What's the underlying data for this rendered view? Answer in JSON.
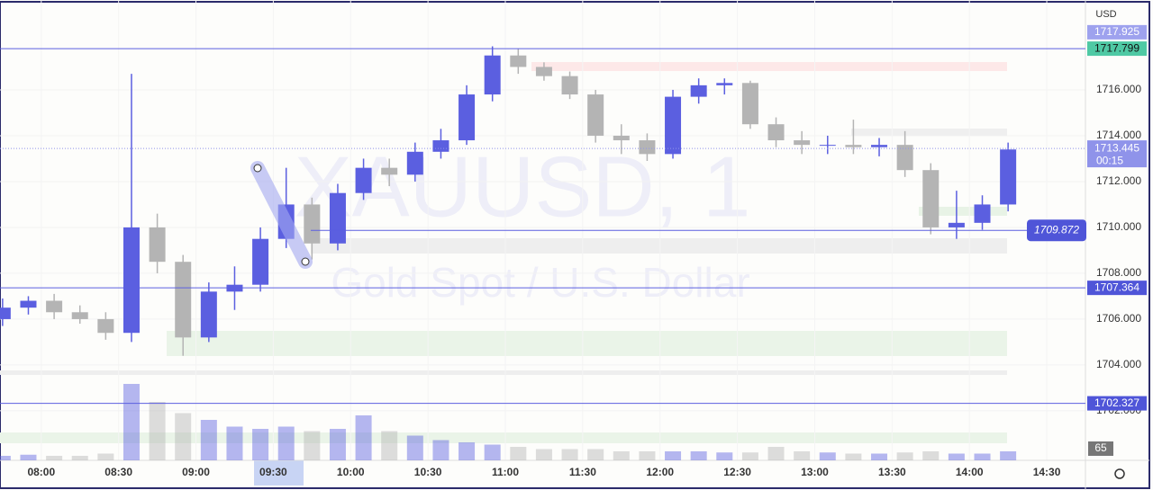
{
  "chart_data": {
    "type": "candlestick",
    "symbol_watermark": "XAUUSD, 1",
    "description_watermark": "Gold Spot / U.S. Dollar",
    "currency": "USD",
    "x": [
      "07:45",
      "07:55",
      "08:05",
      "08:15",
      "08:25",
      "08:35",
      "08:45",
      "08:55",
      "09:05",
      "09:15",
      "09:25",
      "09:35",
      "09:45",
      "09:55",
      "10:05",
      "10:15",
      "10:25",
      "10:35",
      "10:45",
      "10:55",
      "11:05",
      "11:15",
      "11:25",
      "11:35",
      "11:45",
      "11:55",
      "12:05",
      "12:15",
      "12:25",
      "12:35",
      "12:45",
      "12:55",
      "13:05",
      "13:15",
      "13:25",
      "13:35",
      "13:45",
      "13:55",
      "14:05",
      "14:15"
    ],
    "open": [
      1706.0,
      1706.5,
      1706.8,
      1706.3,
      1706.0,
      1705.4,
      1710.0,
      1708.5,
      1705.2,
      1707.2,
      1707.5,
      1709.5,
      1711.0,
      1709.3,
      1711.5,
      1712.6,
      1712.3,
      1713.3,
      1713.8,
      1715.8,
      1717.5,
      1717.0,
      1716.6,
      1715.8,
      1714.0,
      1713.8,
      1713.2,
      1715.7,
      1716.2,
      1716.3,
      1714.5,
      1713.8,
      1713.6,
      1713.6,
      1713.5,
      1713.6,
      1712.5,
      1710.0,
      1710.2,
      1711.0
    ],
    "high": [
      1706.9,
      1707.0,
      1707.1,
      1706.6,
      1706.3,
      1716.7,
      1710.6,
      1708.8,
      1707.6,
      1708.3,
      1710.0,
      1712.6,
      1711.3,
      1711.9,
      1713.0,
      1713.0,
      1713.7,
      1714.3,
      1716.2,
      1717.9,
      1717.8,
      1717.2,
      1716.8,
      1716.0,
      1714.5,
      1714.1,
      1716.0,
      1716.5,
      1716.5,
      1716.4,
      1714.8,
      1714.2,
      1714.0,
      1714.7,
      1713.9,
      1714.2,
      1712.8,
      1711.6,
      1711.4,
      1713.7
    ],
    "low": [
      1705.7,
      1706.2,
      1706.0,
      1705.8,
      1705.1,
      1705.0,
      1708.0,
      1704.4,
      1705.0,
      1706.4,
      1707.2,
      1709.1,
      1708.6,
      1709.0,
      1711.2,
      1711.8,
      1712.0,
      1713.0,
      1713.6,
      1715.5,
      1716.7,
      1716.4,
      1715.6,
      1713.7,
      1713.2,
      1712.9,
      1713.0,
      1715.4,
      1715.8,
      1714.3,
      1713.5,
      1713.2,
      1713.2,
      1713.2,
      1713.1,
      1712.2,
      1709.7,
      1709.5,
      1709.9,
      1710.7
    ],
    "close": [
      1706.5,
      1706.8,
      1706.3,
      1706.0,
      1705.4,
      1710.0,
      1708.5,
      1705.2,
      1707.2,
      1707.5,
      1709.5,
      1711.0,
      1709.3,
      1711.5,
      1712.6,
      1712.3,
      1713.3,
      1713.8,
      1715.8,
      1717.5,
      1717.0,
      1716.6,
      1715.8,
      1714.0,
      1713.8,
      1713.2,
      1715.7,
      1716.2,
      1716.3,
      1714.5,
      1713.8,
      1713.6,
      1713.6,
      1713.5,
      1713.6,
      1712.5,
      1710.0,
      1710.2,
      1711.0,
      1713.4
    ],
    "volume": [
      20,
      25,
      20,
      20,
      30,
      340,
      260,
      210,
      180,
      150,
      140,
      150,
      130,
      140,
      200,
      130,
      110,
      90,
      80,
      70,
      60,
      50,
      50,
      50,
      40,
      40,
      40,
      40,
      35,
      35,
      60,
      40,
      35,
      30,
      30,
      35,
      40,
      30,
      30,
      40
    ],
    "vlim": [
      0,
      400
    ],
    "volume_label": 65,
    "up_color": "#5b5fe0",
    "down_color": "#b4b4b4",
    "xlim": [
      "07:44",
      "14:45"
    ],
    "xticks": [
      "08:00",
      "08:30",
      "09:00",
      "09:30",
      "10:00",
      "10:30",
      "11:00",
      "11:30",
      "12:00",
      "12:30",
      "13:00",
      "13:30",
      "14:00",
      "14:30"
    ],
    "ylim": [
      1699.84,
      1719.92
    ],
    "yticks": [
      {
        "value": 1702,
        "label": "1702.000"
      },
      {
        "value": 1704,
        "label": "1704.000"
      },
      {
        "value": 1706,
        "label": "1706.000"
      },
      {
        "value": 1708,
        "label": "1708.000"
      },
      {
        "value": 1710,
        "label": "1710.000"
      },
      {
        "value": 1712,
        "label": "1712.000"
      },
      {
        "value": 1714,
        "label": "1714.000"
      },
      {
        "value": 1716,
        "label": "1716.000"
      }
    ],
    "hlines": [
      1717.799,
      1707.364,
      1702.327,
      1709.872
    ],
    "high_label": 1717.925,
    "current_price": 1713.445,
    "countdown": "00:15"
  }
}
